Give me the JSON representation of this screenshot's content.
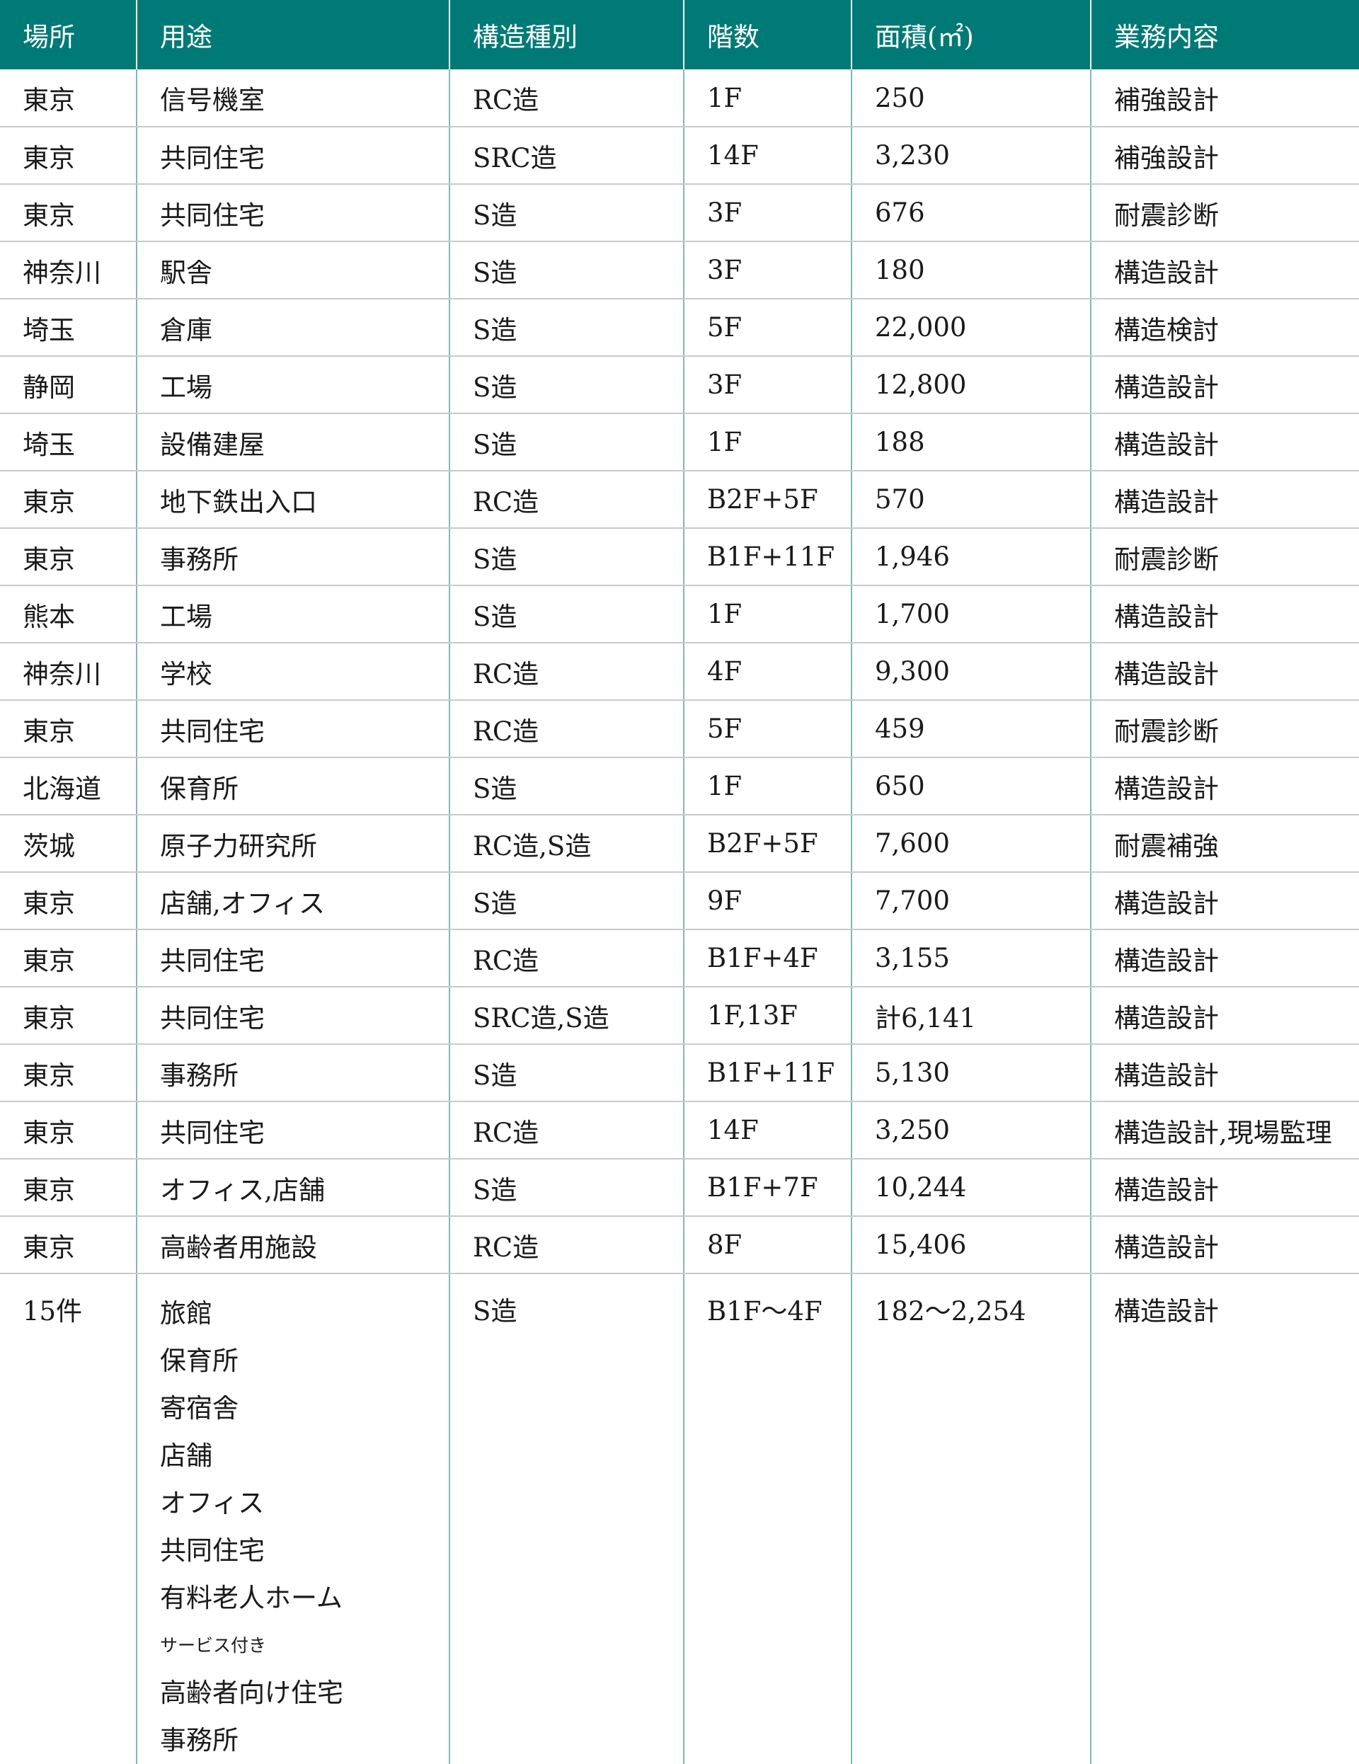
{
  "headers": [
    "場所",
    "用途",
    "構造種別",
    "階数",
    "面積(㎡)",
    "業務内容"
  ],
  "rows": [
    [
      "東京",
      "信号機室",
      "RC造",
      "1F",
      "250",
      "補強設計"
    ],
    [
      "東京",
      "共同住宅",
      "SRC造",
      "14F",
      "3,230",
      "補強設計"
    ],
    [
      "東京",
      "共同住宅",
      "S造",
      "3F",
      "676",
      "耐震診断"
    ],
    [
      "神奈川",
      "駅舎",
      "S造",
      "3F",
      "180",
      "構造設計"
    ],
    [
      "埼玉",
      "倉庫",
      "S造",
      "5F",
      "22,000",
      "構造検討"
    ],
    [
      "静岡",
      "工場",
      "S造",
      "3F",
      "12,800",
      "構造設計"
    ],
    [
      "埼玉",
      "設備建屋",
      "S造",
      "1F",
      "188",
      "構造設計"
    ],
    [
      "東京",
      "地下鉄出入口",
      "RC造",
      "B2F+5F",
      "570",
      "構造設計"
    ],
    [
      "東京",
      "事務所",
      "S造",
      "B1F+11F",
      "1,946",
      "耐震診断"
    ],
    [
      "熊本",
      "工場",
      "S造",
      "1F",
      "1,700",
      "構造設計"
    ],
    [
      "神奈川",
      "学校",
      "RC造",
      "4F",
      "9,300",
      "構造設計"
    ],
    [
      "東京",
      "共同住宅",
      "RC造",
      "5F",
      "459",
      "耐震診断"
    ],
    [
      "北海道",
      "保育所",
      "S造",
      "1F",
      "650",
      "構造設計"
    ],
    [
      "茨城",
      "原子力研究所",
      "RC造,S造",
      "B2F+5F",
      "7,600",
      "耐震補強"
    ],
    [
      "東京",
      "店舗,オフィス",
      "S造",
      "9F",
      "7,700",
      "構造設計"
    ],
    [
      "東京",
      "共同住宅",
      "RC造",
      "B1F+4F",
      "3,155",
      "構造設計"
    ],
    [
      "東京",
      "共同住宅",
      "SRC造,S造",
      "1F,13F",
      "計6,141",
      "構造設計"
    ],
    [
      "東京",
      "事務所",
      "S造",
      "B1F+11F",
      "5,130",
      "構造設計"
    ],
    [
      "東京",
      "共同住宅",
      "RC造",
      "14F",
      "3,250",
      "構造設計,現場監理"
    ],
    [
      "東京",
      "オフィス,店舗",
      "S造",
      "B1F+7F",
      "10,244",
      "構造設計"
    ],
    [
      "東京",
      "高齢者用施設",
      "RC造",
      "8F",
      "15,406",
      "構造設計"
    ]
  ],
  "last_row": {
    "place": "15件",
    "uses": [
      "旅館",
      "保育所",
      "寄宿舎",
      "店舗",
      "オフィス",
      "共同住宅",
      "有料老人ホーム",
      "サービス付き",
      "高齢者向け住宅",
      "事務所"
    ],
    "structure": "S造",
    "floors": "B1F〜4F",
    "area": "182〜2,254",
    "work": "構造設計"
  },
  "colors": {
    "header_bg": "#007a76",
    "header_text": "#ffffff",
    "row_divider": "#c9c9c9",
    "column_divider": "#7fb8b5"
  }
}
